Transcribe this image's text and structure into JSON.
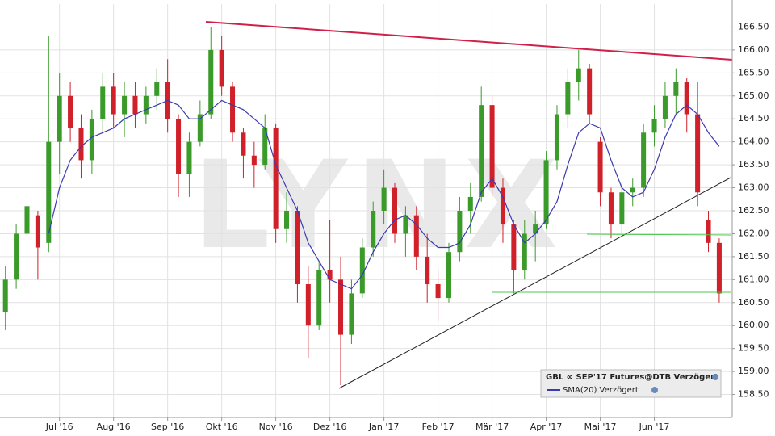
{
  "chart_data": {
    "type": "candlestick",
    "watermark": "LYNX",
    "categories": [
      null,
      null,
      null,
      null,
      null,
      "Jul '16",
      null,
      null,
      null,
      null,
      "Aug '16",
      null,
      null,
      null,
      null,
      "Sep '16",
      null,
      null,
      null,
      null,
      "Okt '16",
      null,
      null,
      null,
      null,
      "Nov '16",
      null,
      null,
      null,
      null,
      "Dez '16",
      null,
      null,
      null,
      null,
      "Jan '17",
      null,
      null,
      null,
      null,
      "Feb '17",
      null,
      null,
      null,
      null,
      "Mär '17",
      null,
      null,
      null,
      null,
      "Apr '17",
      null,
      null,
      null,
      null,
      "Mai '17",
      null,
      null,
      null,
      null,
      "Jun '17",
      null,
      null,
      null,
      null,
      null,
      null
    ],
    "series": [
      {
        "name": "GBL ∞ SEP'17 Futures@DTB Verzögert",
        "up_color": "#3a9a2a",
        "down_color": "#d0202a",
        "open": [
          160.3,
          161.0,
          162.0,
          162.4,
          161.8,
          164.0,
          165.0,
          164.3,
          163.6,
          164.5,
          165.2,
          164.6,
          165.0,
          164.6,
          165.0,
          165.3,
          164.5,
          163.3,
          164.0,
          164.6,
          166.0,
          165.2,
          164.2,
          163.7,
          163.5,
          164.3,
          162.1,
          162.5,
          160.9,
          160.0,
          161.2,
          161.0,
          159.8,
          160.7,
          161.7,
          162.5,
          163.0,
          162.0,
          162.4,
          161.5,
          160.9,
          160.6,
          161.6,
          162.5,
          162.8,
          164.8,
          163.0,
          162.2,
          161.2,
          162.0,
          162.2,
          163.6,
          164.6,
          165.3,
          165.6,
          164.0,
          162.9,
          162.2,
          162.9,
          163.0,
          164.2,
          164.5,
          165.0,
          165.3,
          164.6,
          162.3,
          161.8
        ],
        "high": [
          161.3,
          162.2,
          163.1,
          162.5,
          166.3,
          165.5,
          165.3,
          164.6,
          164.7,
          165.5,
          165.5,
          165.3,
          165.3,
          165.2,
          165.6,
          165.8,
          164.6,
          164.2,
          164.9,
          166.5,
          166.3,
          165.3,
          164.3,
          164.0,
          164.6,
          164.4,
          162.9,
          162.6,
          161.3,
          161.4,
          162.3,
          161.5,
          161.0,
          161.9,
          162.7,
          163.4,
          163.1,
          162.6,
          162.6,
          162.0,
          161.2,
          161.8,
          162.8,
          163.1,
          165.2,
          165.0,
          163.2,
          162.3,
          162.3,
          162.5,
          163.8,
          164.8,
          165.6,
          166.0,
          165.7,
          164.1,
          163.0,
          163.1,
          163.2,
          164.4,
          164.8,
          165.3,
          165.6,
          165.4,
          165.3,
          162.5,
          161.9
        ],
        "low": [
          159.9,
          160.8,
          161.9,
          161.0,
          161.6,
          163.3,
          164.0,
          163.2,
          163.3,
          164.2,
          164.3,
          164.1,
          164.3,
          164.4,
          164.7,
          164.2,
          162.8,
          162.8,
          163.9,
          164.5,
          165.0,
          164.0,
          163.2,
          163.0,
          163.4,
          161.8,
          161.8,
          160.5,
          159.3,
          159.9,
          160.5,
          158.7,
          159.6,
          160.6,
          161.5,
          162.2,
          161.8,
          161.5,
          161.2,
          160.5,
          160.1,
          160.5,
          161.4,
          162.0,
          162.7,
          162.8,
          161.8,
          160.7,
          161.0,
          161.4,
          162.1,
          163.4,
          164.3,
          164.9,
          164.4,
          162.6,
          161.9,
          162.0,
          162.6,
          162.8,
          163.9,
          164.3,
          164.6,
          164.2,
          162.6,
          161.6,
          160.5
        ],
        "close": [
          161.0,
          162.0,
          162.6,
          161.7,
          164.0,
          165.0,
          164.3,
          163.6,
          164.5,
          165.2,
          164.6,
          165.0,
          164.6,
          165.0,
          165.3,
          164.5,
          163.3,
          164.0,
          164.6,
          166.0,
          165.2,
          164.2,
          163.7,
          163.5,
          164.3,
          162.1,
          162.5,
          160.9,
          160.0,
          161.2,
          161.0,
          159.8,
          160.7,
          161.7,
          162.5,
          163.0,
          162.0,
          162.4,
          161.5,
          160.9,
          160.6,
          161.6,
          162.5,
          162.8,
          164.8,
          163.0,
          162.2,
          161.2,
          162.0,
          162.2,
          163.6,
          164.6,
          165.3,
          165.6,
          164.6,
          162.9,
          162.2,
          162.9,
          163.0,
          164.2,
          164.5,
          165.0,
          165.3,
          164.6,
          162.9,
          161.8,
          160.7
        ]
      },
      {
        "name": "SMA(20) Verzögert",
        "type": "line",
        "color": "#3b3bb0",
        "values": [
          null,
          null,
          null,
          null,
          162.0,
          163.0,
          163.6,
          163.9,
          164.1,
          164.2,
          164.3,
          164.5,
          164.6,
          164.7,
          164.8,
          164.9,
          164.8,
          164.5,
          164.5,
          164.7,
          164.9,
          164.8,
          164.7,
          164.5,
          164.3,
          163.5,
          163.0,
          162.5,
          161.8,
          161.4,
          161.0,
          160.9,
          160.8,
          161.1,
          161.6,
          162.0,
          162.3,
          162.4,
          162.2,
          161.9,
          161.7,
          161.7,
          161.8,
          162.2,
          162.9,
          163.2,
          162.8,
          162.2,
          161.8,
          162.0,
          162.3,
          162.7,
          163.5,
          164.2,
          164.4,
          164.3,
          163.6,
          163.0,
          162.8,
          162.9,
          163.4,
          164.1,
          164.6,
          164.8,
          164.6,
          164.2,
          163.9
        ]
      }
    ],
    "ylim": [
      158.0,
      167.0
    ],
    "yticks": [
      {
        "value": 158.5,
        "label": "158.50"
      },
      {
        "value": 159.0,
        "label": "159.00"
      },
      {
        "value": 159.5,
        "label": "159.50"
      },
      {
        "value": 160.0,
        "label": "160.00"
      },
      {
        "value": 160.5,
        "label": "160.50"
      },
      {
        "value": 161.0,
        "label": "161.00"
      },
      {
        "value": 161.5,
        "label": "161.50"
      },
      {
        "value": 162.0,
        "label": "162.00"
      },
      {
        "value": 162.5,
        "label": "162.50"
      },
      {
        "value": 163.0,
        "label": "163.00"
      },
      {
        "value": 163.5,
        "label": "163.50"
      },
      {
        "value": 164.0,
        "label": "164.00"
      },
      {
        "value": 164.5,
        "label": "164.50"
      },
      {
        "value": 165.0,
        "label": "165.00"
      },
      {
        "value": 165.5,
        "label": "165.50"
      },
      {
        "value": 166.0,
        "label": "166.00"
      },
      {
        "value": 166.5,
        "label": "166.50"
      }
    ],
    "grid": true
  }
}
